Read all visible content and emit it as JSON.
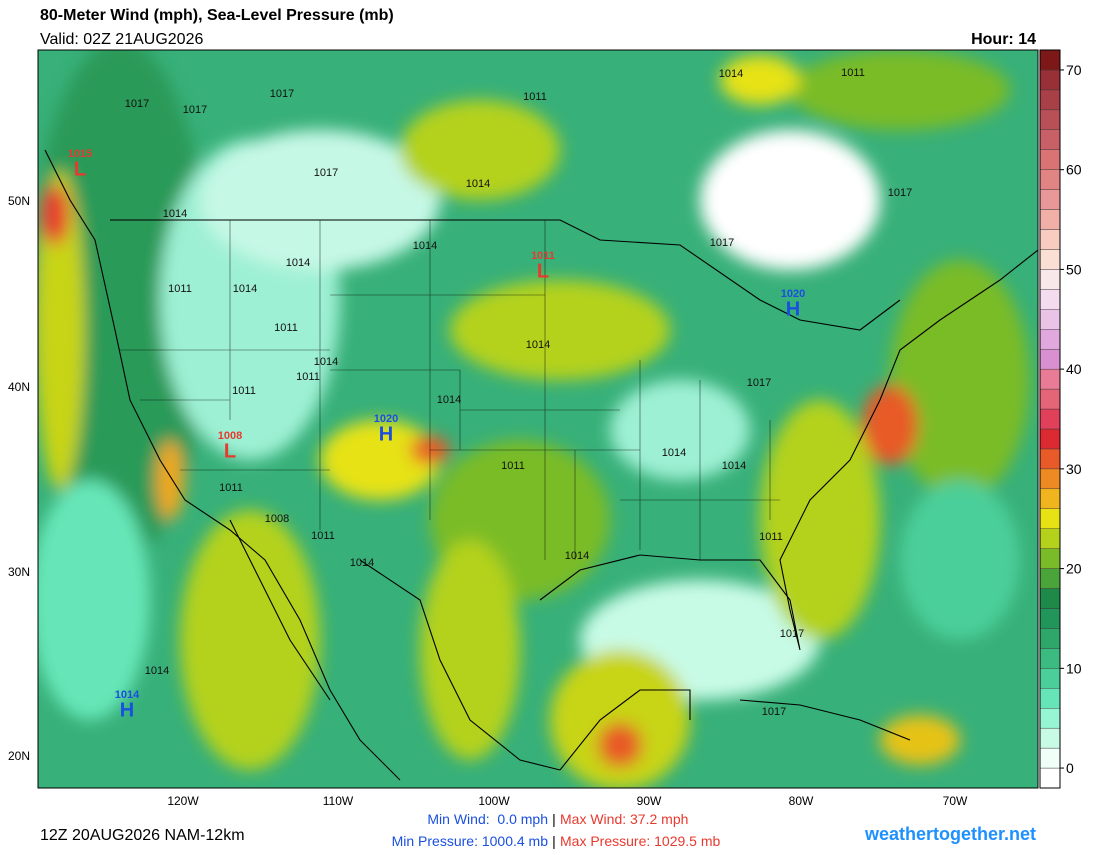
{
  "header": {
    "title": "80-Meter Wind (mph), Sea-Level Pressure (mb)",
    "valid": "Valid: 02Z 21AUG2026",
    "hour": "Hour: 14"
  },
  "map": {
    "lat_labels": [
      "50N",
      "40N",
      "30N",
      "20N"
    ],
    "lon_labels": [
      "120W",
      "110W",
      "100W",
      "90W",
      "80W",
      "70W"
    ],
    "pressure_centers": [
      {
        "letter": "L",
        "value": 1015,
        "color": "#e8392e"
      },
      {
        "letter": "L",
        "value": 1011,
        "color": "#e8392e"
      },
      {
        "letter": "H",
        "value": 1020,
        "color": "#1a4fe0"
      },
      {
        "letter": "L",
        "value": 1008,
        "color": "#e8392e"
      },
      {
        "letter": "H",
        "value": 1020,
        "color": "#1a4fe0"
      },
      {
        "letter": "H",
        "value": 1014,
        "color": "#1a4fe0"
      }
    ],
    "isobar_labels": [
      1017,
      1017,
      1017,
      1014,
      1014,
      1011,
      1017,
      1014,
      1011,
      1014,
      1014,
      1017,
      1017,
      1014,
      1011,
      1011,
      1011,
      1014,
      1011,
      1014,
      1011,
      1011,
      1008,
      1014,
      1014,
      1014,
      1017,
      1011,
      1014,
      1011,
      1014,
      1017,
      1017,
      1014
    ]
  },
  "colorbar": {
    "lim": [
      -2,
      72
    ],
    "ticks": [
      0,
      10,
      20,
      30,
      40,
      50,
      60,
      70
    ],
    "colors": [
      "#ffffff",
      "#f0fff8",
      "#c8fbe6",
      "#96f5d2",
      "#66e6b8",
      "#4bcf9a",
      "#3cbb80",
      "#2ea86a",
      "#22955a",
      "#1e8a4a",
      "#4aa43a",
      "#7abc28",
      "#b4d21c",
      "#e6e214",
      "#f0b41e",
      "#ee8a22",
      "#e85a28",
      "#dc2a32",
      "#e0405a",
      "#e46478",
      "#e87c96",
      "#d890d0",
      "#e0a8dc",
      "#eac4e6",
      "#f2dcee",
      "#f8e8ea",
      "#fae0d4",
      "#f8ccc0",
      "#f0b0a8",
      "#e89898",
      "#e08484",
      "#d87474",
      "#c86068",
      "#b85058",
      "#a84048",
      "#983038",
      "#7c1818"
    ]
  },
  "footer": {
    "run": "12Z 20AUG2026 NAM-12km",
    "min_wind": "Min Wind:  0.0 mph",
    "max_wind": "Max Wind: 37.2 mph",
    "min_pressure": "Min Pressure: 1000.4 mb",
    "max_pressure": "Max Pressure: 1029.5 mb",
    "separator": "|",
    "site": "weathertogether.net"
  }
}
